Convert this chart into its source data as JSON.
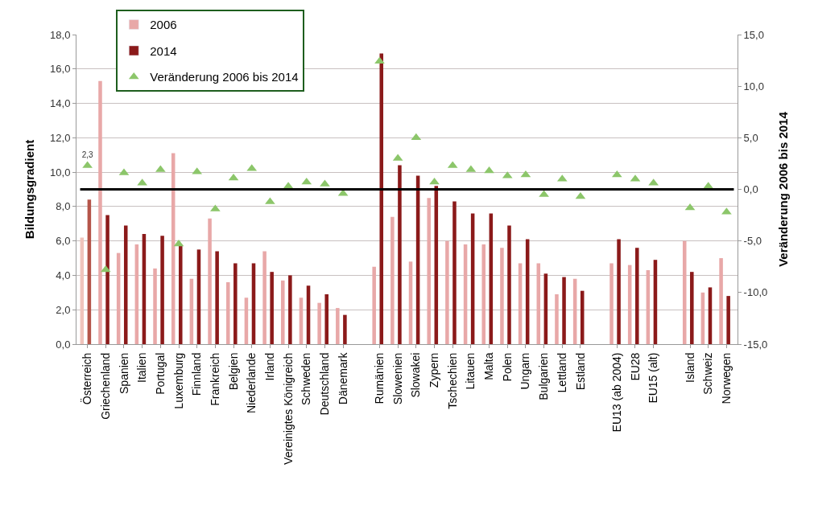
{
  "chart_data": {
    "type": "bar",
    "ylabel": "Bildungsgradient",
    "y2label": "Veränderung 2006 bis 2014",
    "categories": [
      "Österreich",
      "Griechenland",
      "Spanien",
      "Italien",
      "Portugal",
      "Luxemburg",
      "Finnland",
      "Frankreich",
      "Belgien",
      "Niederlande",
      "Irland",
      "Vereinigtes Königreich",
      "Schweden",
      "Deutschland",
      "Dänemark",
      null,
      "Rumänien",
      "Slowenien",
      "Slowakei",
      "Zypern",
      "Tschechien",
      "Litauen",
      "Malta",
      "Polen",
      "Ungarn",
      "Bulgarien",
      "Lettland",
      "Estland",
      null,
      "EU13 (ab 2004)",
      "EU28",
      "EU15 (alt)",
      null,
      "Island",
      "Schweiz",
      "Norwegen"
    ],
    "series": [
      {
        "name": "2006",
        "color": "#e8a8a8",
        "colors": [
          "#f0c4bc",
          "#e8a8a8",
          "#e8a8a8",
          "#e8a8a8",
          "#e8a8a8",
          "#e8a8a8",
          "#e8a8a8",
          "#e8a8a8",
          "#e8a8a8",
          "#e8a8a8",
          "#e8a8a8",
          "#e8a8a8",
          "#e8a8a8",
          "#e8a8a8",
          "#e8a8a8",
          "#e8a8a8",
          "#e8a8a8",
          "#e8a8a8",
          "#e8a8a8",
          "#e8a8a8",
          "#e8a8a8",
          "#e8a8a8",
          "#e8a8a8",
          "#e8a8a8",
          "#e8a8a8",
          "#e8a8a8",
          "#e8a8a8",
          "#e8a8a8",
          "#e8a8a8",
          "#e8a8a8",
          "#e8a8a8",
          "#e8a8a8",
          "#e8a8a8",
          "#e8a8a8",
          "#e8a8a8",
          "#e8a8a8"
        ],
        "values": [
          6.2,
          15.3,
          5.3,
          5.8,
          4.4,
          11.1,
          3.8,
          7.3,
          3.6,
          2.7,
          5.4,
          3.7,
          2.7,
          2.4,
          2.1,
          null,
          4.5,
          7.4,
          4.8,
          8.5,
          6.0,
          5.8,
          5.8,
          5.6,
          4.7,
          4.7,
          2.9,
          3.8,
          null,
          4.7,
          4.6,
          4.3,
          null,
          6.0,
          3.0,
          5.0
        ]
      },
      {
        "name": "2014",
        "color": "#8b1a1a",
        "colors": [
          "#b5554a",
          "#8b1a1a",
          "#8b1a1a",
          "#8b1a1a",
          "#8b1a1a",
          "#8b1a1a",
          "#8b1a1a",
          "#8b1a1a",
          "#8b1a1a",
          "#8b1a1a",
          "#8b1a1a",
          "#8b1a1a",
          "#8b1a1a",
          "#8b1a1a",
          "#8b1a1a",
          "#8b1a1a",
          "#8b1a1a",
          "#8b1a1a",
          "#8b1a1a",
          "#8b1a1a",
          "#8b1a1a",
          "#8b1a1a",
          "#8b1a1a",
          "#8b1a1a",
          "#8b1a1a",
          "#8b1a1a",
          "#8b1a1a",
          "#8b1a1a",
          "#8b1a1a",
          "#8b1a1a",
          "#8b1a1a",
          "#8b1a1a",
          "#8b1a1a",
          "#8b1a1a",
          "#8b1a1a",
          "#8b1a1a"
        ],
        "values": [
          8.4,
          7.5,
          6.9,
          6.4,
          6.3,
          5.8,
          5.5,
          5.4,
          4.7,
          4.7,
          4.2,
          4.0,
          3.4,
          2.9,
          1.7,
          null,
          16.9,
          10.4,
          9.8,
          9.2,
          8.3,
          7.6,
          7.6,
          6.9,
          6.1,
          4.1,
          3.9,
          3.1,
          null,
          6.1,
          5.6,
          4.9,
          null,
          4.2,
          3.3,
          2.8
        ]
      },
      {
        "name": "Veränderung 2006 bis 2014",
        "type": "scatter",
        "axis": "y2",
        "marker": "triangle",
        "color": "#8cc66a",
        "values": [
          2.3,
          -7.8,
          1.6,
          0.6,
          1.9,
          -5.3,
          1.7,
          -1.9,
          1.1,
          2.0,
          -1.2,
          0.3,
          0.7,
          0.5,
          -0.4,
          null,
          12.4,
          3.0,
          5.0,
          0.7,
          2.3,
          1.9,
          1.8,
          1.3,
          1.4,
          -0.5,
          1.0,
          -0.7,
          null,
          1.4,
          1.0,
          0.6,
          null,
          -1.8,
          0.3,
          -2.2
        ],
        "value_labels": [
          "2,3",
          null,
          null,
          null,
          null,
          null,
          null,
          null,
          null,
          null,
          null,
          null,
          null,
          null,
          null,
          null,
          null,
          null,
          null,
          null,
          null,
          null,
          null,
          null,
          null,
          null,
          null,
          null,
          null,
          null,
          null,
          null,
          null,
          null,
          null,
          null
        ]
      }
    ],
    "ylim": [
      0,
      18
    ],
    "yticks": [
      {
        "value": 0,
        "label": "0,0"
      },
      {
        "value": 2,
        "label": "2,0"
      },
      {
        "value": 4,
        "label": "4,0"
      },
      {
        "value": 6,
        "label": "6,0"
      },
      {
        "value": 8,
        "label": "8,0"
      },
      {
        "value": 10,
        "label": "10,0"
      },
      {
        "value": 12,
        "label": "12,0"
      },
      {
        "value": 14,
        "label": "14,0"
      },
      {
        "value": 16,
        "label": "16,0"
      },
      {
        "value": 18,
        "label": "18,0"
      }
    ],
    "y2lim": [
      -15,
      15
    ],
    "y2ticks": [
      {
        "value": -15,
        "label": "-15,0"
      },
      {
        "value": -10,
        "label": "-10,0"
      },
      {
        "value": -5,
        "label": "-5,0"
      },
      {
        "value": 0,
        "label": "0,0"
      },
      {
        "value": 5,
        "label": "5,0"
      },
      {
        "value": 10,
        "label": "10,0"
      },
      {
        "value": 15,
        "label": "15,0"
      }
    ],
    "ref_lines": [
      {
        "axis": "y2",
        "value": 0,
        "color": "#000000"
      }
    ],
    "grid": "y",
    "legend": "top left"
  }
}
